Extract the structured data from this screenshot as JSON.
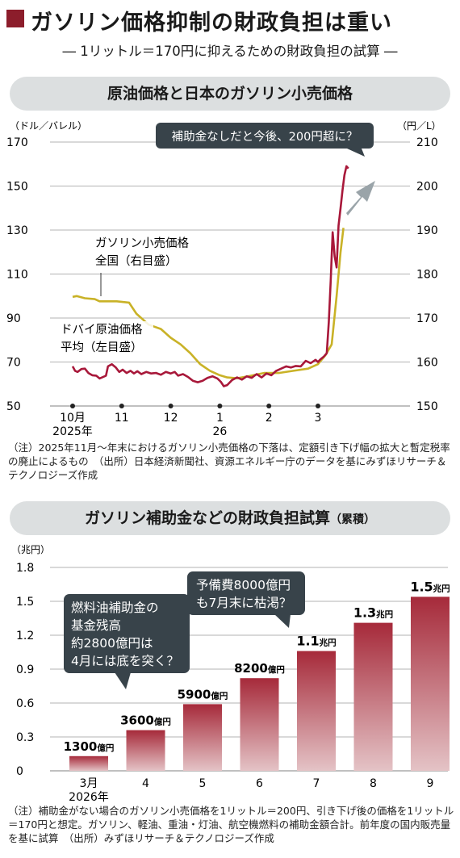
{
  "title": "ガソリン価格抑制の財政負担は重い",
  "subtitle": "― 1リットル＝170円に抑えるための財政負担の試算 ―",
  "charts": [
    {
      "type": "line",
      "heading": "原油価格と日本のガソリン小売価格",
      "left_unit": "（ドル／バレル）",
      "right_unit": "（円／L）",
      "left_ticks": [
        "170",
        "150",
        "130",
        "110",
        "90",
        "70",
        "50"
      ],
      "right_ticks": [
        "210",
        "200",
        "190",
        "180",
        "170",
        "160",
        "150"
      ],
      "x_ticks": [
        "10月",
        "11",
        "12",
        "1",
        "2",
        "3"
      ],
      "x_ticks_sub": [
        "2025年",
        "",
        "",
        "26",
        "",
        ""
      ],
      "callout": "補助金なしだと今後、200円超に？",
      "colors": {
        "crude": "#a8183a",
        "gasoline": "#c9b227"
      },
      "series": [
        {
          "label_lines": [
            "ガソリン小売価格",
            "全国（右目盛）"
          ],
          "axis": "right",
          "points": [
            [
              0,
              174.8
            ],
            [
              0.08,
              175
            ],
            [
              0.25,
              174.5
            ],
            [
              0.45,
              174.3
            ],
            [
              0.55,
              173.8
            ],
            [
              0.9,
              173.8
            ],
            [
              1.15,
              173.5
            ],
            [
              1.3,
              171
            ],
            [
              1.55,
              168.5
            ],
            [
              1.8,
              167.5
            ],
            [
              2.0,
              165.5
            ],
            [
              2.2,
              164
            ],
            [
              2.4,
              162
            ],
            [
              2.6,
              159.5
            ],
            [
              2.8,
              158
            ],
            [
              3.0,
              157
            ],
            [
              3.15,
              156.5
            ],
            [
              3.35,
              156.3
            ],
            [
              3.6,
              156.8
            ],
            [
              3.9,
              157.5
            ],
            [
              4.2,
              157.5
            ],
            [
              4.5,
              158
            ],
            [
              4.8,
              158.5
            ],
            [
              5.0,
              159.5
            ],
            [
              5.15,
              161.5
            ],
            [
              5.28,
              164
            ],
            [
              5.38,
              175
            ],
            [
              5.46,
              185
            ],
            [
              5.52,
              190.5
            ]
          ]
        },
        {
          "label_lines": [
            "ドバイ原油価格",
            "平均（左目盛）"
          ],
          "axis": "left",
          "points": [
            [
              0,
              68
            ],
            [
              0.05,
              66
            ],
            [
              0.1,
              65.5
            ],
            [
              0.18,
              66.8
            ],
            [
              0.25,
              67
            ],
            [
              0.32,
              65
            ],
            [
              0.4,
              64
            ],
            [
              0.48,
              63.8
            ],
            [
              0.55,
              62.5
            ],
            [
              0.6,
              63
            ],
            [
              0.68,
              63.8
            ],
            [
              0.72,
              68
            ],
            [
              0.8,
              69
            ],
            [
              0.88,
              67.5
            ],
            [
              0.95,
              65.5
            ],
            [
              1.02,
              66.5
            ],
            [
              1.1,
              65
            ],
            [
              1.18,
              66
            ],
            [
              1.25,
              64.8
            ],
            [
              1.32,
              65.8
            ],
            [
              1.4,
              64.5
            ],
            [
              1.5,
              65.5
            ],
            [
              1.6,
              64.8
            ],
            [
              1.7,
              65
            ],
            [
              1.8,
              64.2
            ],
            [
              1.9,
              65.5
            ],
            [
              2.0,
              64.8
            ],
            [
              2.08,
              65.5
            ],
            [
              2.15,
              63.8
            ],
            [
              2.25,
              64.5
            ],
            [
              2.35,
              63.2
            ],
            [
              2.45,
              61.5
            ],
            [
              2.55,
              60.8
            ],
            [
              2.65,
              61.5
            ],
            [
              2.75,
              62.8
            ],
            [
              2.85,
              63.5
            ],
            [
              2.95,
              62.5
            ],
            [
              3.02,
              61
            ],
            [
              3.08,
              59
            ],
            [
              3.15,
              59.5
            ],
            [
              3.25,
              61.8
            ],
            [
              3.35,
              63
            ],
            [
              3.45,
              62
            ],
            [
              3.55,
              63.5
            ],
            [
              3.65,
              62.8
            ],
            [
              3.75,
              64.5
            ],
            [
              3.85,
              63
            ],
            [
              3.95,
              64.8
            ],
            [
              4.05,
              64
            ],
            [
              4.15,
              66
            ],
            [
              4.25,
              67
            ],
            [
              4.35,
              68
            ],
            [
              4.45,
              67.5
            ],
            [
              4.55,
              68.2
            ],
            [
              4.65,
              68
            ],
            [
              4.75,
              70.5
            ],
            [
              4.85,
              69.5
            ],
            [
              4.95,
              71
            ],
            [
              5.0,
              70
            ],
            [
              5.05,
              71.2
            ],
            [
              5.12,
              72.5
            ],
            [
              5.18,
              74
            ],
            [
              5.22,
              88
            ],
            [
              5.26,
              107
            ],
            [
              5.3,
              129
            ],
            [
              5.34,
              118
            ],
            [
              5.38,
              113
            ],
            [
              5.42,
              132
            ],
            [
              5.46,
              140
            ],
            [
              5.5,
              148
            ],
            [
              5.54,
              155
            ],
            [
              5.58,
              159
            ],
            [
              5.62,
              158
            ]
          ]
        }
      ],
      "note": "（注）2025年11月～年末におけるガソリン小売価格の下落は、定額引き下げ幅の拡大と暫定税率の廃止によるもの　（出所）日本経済新聞社、資源エネルギー庁のデータを基にみずほリサーチ＆テクノロジーズ作成"
    },
    {
      "type": "bar",
      "heading": "ガソリン補助金などの財政負担試算",
      "heading_suffix": "（累積）",
      "unit": "（兆円）",
      "y_ticks": [
        "1.8",
        "1.5",
        "1.2",
        "0.9",
        "0.6",
        "0.3",
        "0"
      ],
      "categories": [
        "3月",
        "4",
        "5",
        "6",
        "7",
        "8",
        "9"
      ],
      "category_sub": [
        "2026年",
        "",
        "",
        "",
        "",
        "",
        ""
      ],
      "values": [
        0.13,
        0.36,
        0.59,
        0.82,
        1.06,
        1.31,
        1.54
      ],
      "value_labels": [
        {
          "num": "1300",
          "unit": "億円"
        },
        {
          "num": "3600",
          "unit": "億円"
        },
        {
          "num": "5900",
          "unit": "億円"
        },
        {
          "num": "8200",
          "unit": "億円"
        },
        {
          "num": "1.1",
          "unit": "兆円"
        },
        {
          "num": "1.3",
          "unit": "兆円"
        },
        {
          "num": "1.5",
          "unit": "兆円"
        }
      ],
      "ylim": [
        0,
        1.8
      ],
      "colors": {
        "bar_top": "#a62a3a",
        "bar_bottom": "#e4c3c6"
      },
      "callouts": [
        [
          "燃料油補助金の",
          "基金残高",
          "約2800億円は",
          "4月には底を突く？"
        ],
        [
          "予備費8000億円",
          "も7月末に枯渇？"
        ]
      ],
      "note": "（注）補助金がない場合のガソリン小売価格を1リットル＝200円、引き下げ後の価格を1リットル＝170円と想定。ガソリン、軽油、重油・灯油、航空機燃料の補助金額合計。前年度の国内販売量を基に試算　（出所）みずほリサーチ＆テクノロジーズ作成"
    }
  ]
}
